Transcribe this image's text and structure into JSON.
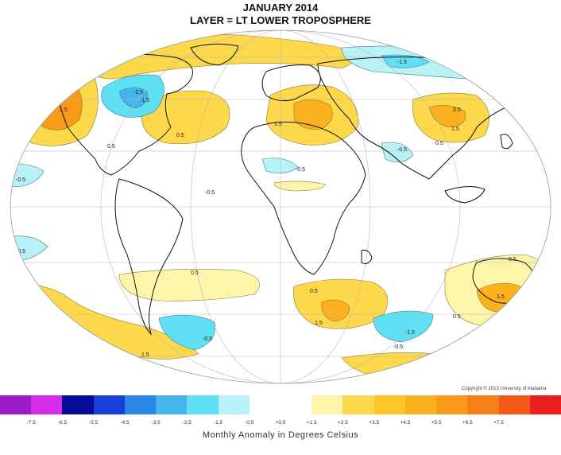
{
  "header": {
    "line1": "JANUARY 2014",
    "line2": "LAYER = LT LOWER TROPOSPHERE"
  },
  "copyright": "Copyright © 2013 University of Alabama",
  "colorbar": {
    "label": "Monthly Anomaly in Degrees Celsius",
    "segments": [
      {
        "color": "#9b1bc8"
      },
      {
        "color": "#d52de8"
      },
      {
        "color": "#0a0a9a"
      },
      {
        "color": "#1640d8"
      },
      {
        "color": "#2c86e6"
      },
      {
        "color": "#44b6ec"
      },
      {
        "color": "#5fe0f4"
      },
      {
        "color": "#b8f2f6"
      },
      {
        "color": "#ffffff"
      },
      {
        "color": "#ffffff"
      },
      {
        "color": "#fdf6aa"
      },
      {
        "color": "#fdd84a"
      },
      {
        "color": "#fdc52a"
      },
      {
        "color": "#fbb01e"
      },
      {
        "color": "#f99a1a"
      },
      {
        "color": "#f67f1a"
      },
      {
        "color": "#f35a1a"
      },
      {
        "color": "#e82020"
      }
    ],
    "ticks": [
      "-7.5",
      "-6.5",
      "-5.5",
      "-4.5",
      "-3.5",
      "-2.5",
      "-1.5",
      "-0.5",
      "+0.5",
      "+1.5",
      "+2.5",
      "+3.5",
      "+4.5",
      "+5.5",
      "+6.5",
      "+7.5"
    ]
  },
  "map": {
    "projection": "mollweide",
    "contour_labels": [
      {
        "text": "-0.5"
      },
      {
        "text": "-0.5"
      },
      {
        "text": "-0.5"
      },
      {
        "text": "-0.5"
      },
      {
        "text": "-1.5"
      },
      {
        "text": "-2.5"
      },
      {
        "text": "-1.5"
      },
      {
        "text": "-0.5"
      },
      {
        "text": "0.5"
      },
      {
        "text": "1.5"
      },
      {
        "text": "0.5"
      },
      {
        "text": "1.5"
      },
      {
        "text": "0.5"
      },
      {
        "text": "0.5"
      },
      {
        "text": "0.5"
      },
      {
        "text": "1.5"
      },
      {
        "text": "-0.5"
      },
      {
        "text": "0.5"
      },
      {
        "text": "1.5"
      },
      {
        "text": "-0.5"
      },
      {
        "text": "-1.5"
      },
      {
        "text": "0.5"
      },
      {
        "text": "1.5"
      },
      {
        "text": "0.5"
      },
      {
        "text": "0.5"
      },
      {
        "text": "1.5"
      }
    ]
  }
}
